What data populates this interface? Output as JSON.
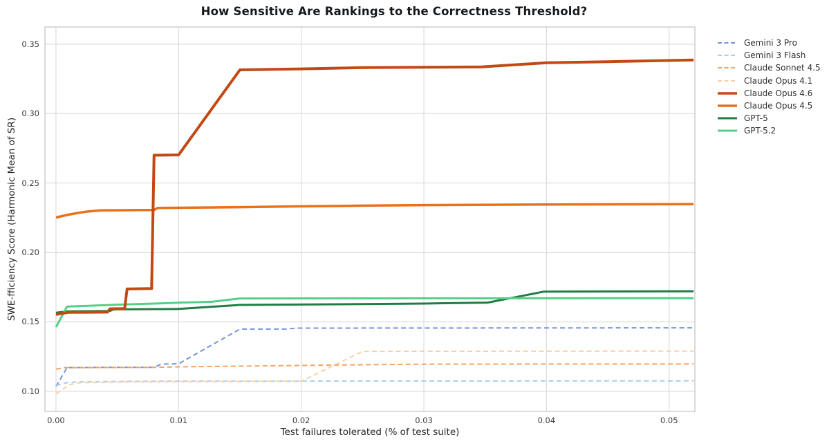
{
  "chart_data": {
    "type": "line",
    "title": "How Sensitive Are Rankings to the Correctness Threshold?",
    "xlabel": "Test failures tolerated (% of test suite)",
    "ylabel": "SWE-fficiency Score (Harmonic Mean of SR)",
    "xlim": [
      -0.0009,
      0.0521
    ],
    "ylim": [
      0.0855,
      0.3624
    ],
    "grid": true,
    "legend_position": "right-outside",
    "x_ticks": [
      {
        "v": 0.0,
        "label": "0.00"
      },
      {
        "v": 0.01,
        "label": "0.01"
      },
      {
        "v": 0.02,
        "label": "0.02"
      },
      {
        "v": 0.03,
        "label": "0.03"
      },
      {
        "v": 0.04,
        "label": "0.04"
      },
      {
        "v": 0.05,
        "label": "0.05"
      }
    ],
    "y_ticks": [
      {
        "v": 0.1,
        "label": "0.10"
      },
      {
        "v": 0.15,
        "label": "0.15"
      },
      {
        "v": 0.2,
        "label": "0.20"
      },
      {
        "v": 0.25,
        "label": "0.25"
      },
      {
        "v": 0.3,
        "label": "0.30"
      },
      {
        "v": 0.35,
        "label": "0.35"
      }
    ],
    "series": [
      {
        "name": "Gemini 3 Pro",
        "color": "#7495DA",
        "dash": true,
        "width": 2,
        "z": 1,
        "points": [
          [
            0,
            0.1035
          ],
          [
            0.0009,
            0.117
          ],
          [
            0.004,
            0.1172
          ],
          [
            0.008,
            0.1172
          ],
          [
            0.0086,
            0.1196
          ],
          [
            0.01,
            0.1198
          ],
          [
            0.015,
            0.1448
          ],
          [
            0.0188,
            0.1448
          ],
          [
            0.0196,
            0.1455
          ],
          [
            0.052,
            0.1457
          ]
        ]
      },
      {
        "name": "Gemini 3 Flash",
        "color": "#AFCBEE",
        "dash": true,
        "width": 2,
        "z": 2,
        "points": [
          [
            0,
            0.1042
          ],
          [
            0.0009,
            0.1062
          ],
          [
            0.0018,
            0.1068
          ],
          [
            0.0053,
            0.1071
          ],
          [
            0.01,
            0.1073
          ],
          [
            0.052,
            0.1075
          ]
        ]
      },
      {
        "name": "Claude Sonnet 4.5",
        "color": "#F2A262",
        "dash": true,
        "width": 2,
        "z": 3,
        "points": [
          [
            0,
            0.116
          ],
          [
            0.0007,
            0.117
          ],
          [
            0.008,
            0.1172
          ],
          [
            0.01,
            0.1176
          ],
          [
            0.014,
            0.118
          ],
          [
            0.02,
            0.1186
          ],
          [
            0.025,
            0.1191
          ],
          [
            0.03,
            0.1195
          ],
          [
            0.052,
            0.1197
          ]
        ]
      },
      {
        "name": "Claude Opus 4.1",
        "color": "#F9D0A4",
        "dash": true,
        "width": 2,
        "z": 4,
        "points": [
          [
            0,
            0.0982
          ],
          [
            0.0011,
            0.1048
          ],
          [
            0.002,
            0.1062
          ],
          [
            0.006,
            0.1068
          ],
          [
            0.02,
            0.1072
          ],
          [
            0.025,
            0.1288
          ],
          [
            0.052,
            0.129
          ]
        ]
      },
      {
        "name": "Claude Opus 4.6",
        "color": "#C24914",
        "dash": false,
        "width": 4,
        "z": 8,
        "points": [
          [
            0,
            0.1553
          ],
          [
            0.001,
            0.1568
          ],
          [
            0.0042,
            0.157
          ],
          [
            0.0044,
            0.1594
          ],
          [
            0.0056,
            0.1596
          ],
          [
            0.0058,
            0.1737
          ],
          [
            0.0078,
            0.174
          ],
          [
            0.008,
            0.27
          ],
          [
            0.01,
            0.2702
          ],
          [
            0.015,
            0.3315
          ],
          [
            0.02,
            0.3322
          ],
          [
            0.025,
            0.3331
          ],
          [
            0.03,
            0.3334
          ],
          [
            0.0347,
            0.3336
          ],
          [
            0.04,
            0.3366
          ],
          [
            0.045,
            0.3374
          ],
          [
            0.052,
            0.3386
          ]
        ]
      },
      {
        "name": "Claude Opus 4.5",
        "color": "#E8711C",
        "dash": false,
        "width": 3.5,
        "z": 7,
        "points": [
          [
            0,
            0.2252
          ],
          [
            0.001,
            0.2272
          ],
          [
            0.002,
            0.2288
          ],
          [
            0.0026,
            0.2295
          ],
          [
            0.0036,
            0.2303
          ],
          [
            0.008,
            0.2306
          ],
          [
            0.0083,
            0.232
          ],
          [
            0.015,
            0.2326
          ],
          [
            0.02,
            0.2332
          ],
          [
            0.025,
            0.2337
          ],
          [
            0.03,
            0.2341
          ],
          [
            0.04,
            0.2345
          ],
          [
            0.052,
            0.2348
          ]
        ]
      },
      {
        "name": "GPT-5",
        "color": "#1F7D44",
        "dash": false,
        "width": 3,
        "z": 5,
        "points": [
          [
            0,
            0.1566
          ],
          [
            0.001,
            0.1576
          ],
          [
            0.0044,
            0.1578
          ],
          [
            0.0047,
            0.159
          ],
          [
            0.01,
            0.1593
          ],
          [
            0.015,
            0.1622
          ],
          [
            0.025,
            0.1628
          ],
          [
            0.03,
            0.1632
          ],
          [
            0.0352,
            0.1639
          ],
          [
            0.0398,
            0.1718
          ],
          [
            0.052,
            0.172
          ]
        ]
      },
      {
        "name": "GPT-5.2",
        "color": "#55CE88",
        "dash": false,
        "width": 3,
        "z": 6,
        "points": [
          [
            0,
            0.1462
          ],
          [
            0.0009,
            0.161
          ],
          [
            0.003,
            0.1617
          ],
          [
            0.005,
            0.1624
          ],
          [
            0.0087,
            0.1634
          ],
          [
            0.01,
            0.1638
          ],
          [
            0.0127,
            0.1645
          ],
          [
            0.015,
            0.1669
          ],
          [
            0.052,
            0.1671
          ]
        ]
      }
    ],
    "style": {
      "grid_color": "#DCDCDC",
      "frame_color": "#CBCBCB",
      "background": "#FFFFFF"
    }
  }
}
